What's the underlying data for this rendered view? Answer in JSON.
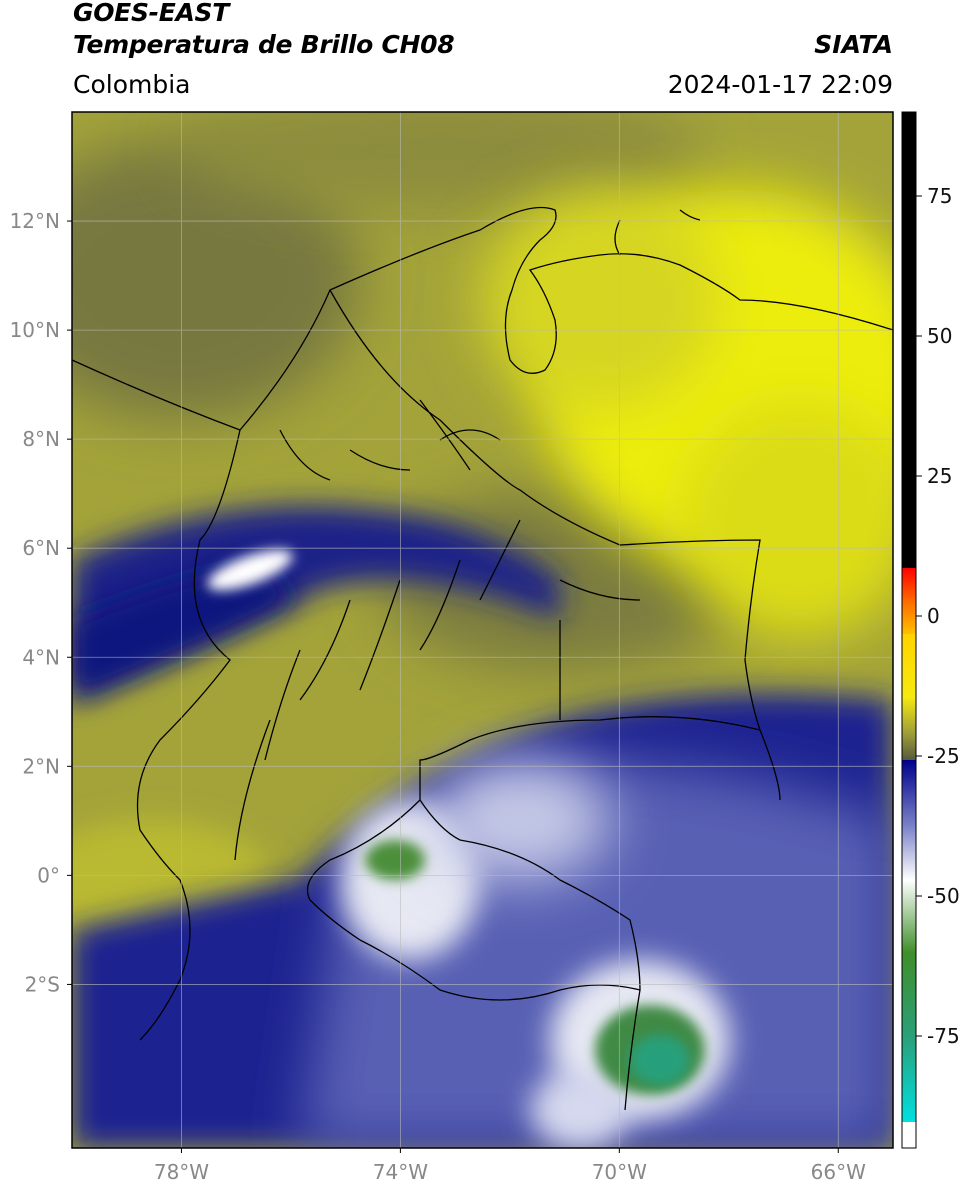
{
  "header": {
    "satellite": "GOES-EAST",
    "product": "Temperatura de Brillo CH08",
    "agency": "SIATA",
    "region": "Colombia",
    "timestamp": "2024-01-17 22:09"
  },
  "map": {
    "lon_range": [
      -80,
      -65
    ],
    "lat_range": [
      -5,
      14
    ],
    "lat_labels": [
      "12°N",
      "10°N",
      "8°N",
      "6°N",
      "4°N",
      "2°N",
      "0°",
      "2°S"
    ],
    "lat_values": [
      12,
      10,
      8,
      6,
      4,
      2,
      0,
      -2
    ],
    "lon_labels": [
      "78°W",
      "74°W",
      "70°W",
      "66°W"
    ],
    "lon_values": [
      -78,
      -74,
      -70,
      -66
    ]
  },
  "colorbar": {
    "range": [
      -95,
      90
    ],
    "tick_labels": [
      "75",
      "50",
      "25",
      "0",
      "-25",
      "-50",
      "-75"
    ],
    "tick_values": [
      75,
      50,
      25,
      0,
      -25,
      -50,
      -75
    ]
  }
}
